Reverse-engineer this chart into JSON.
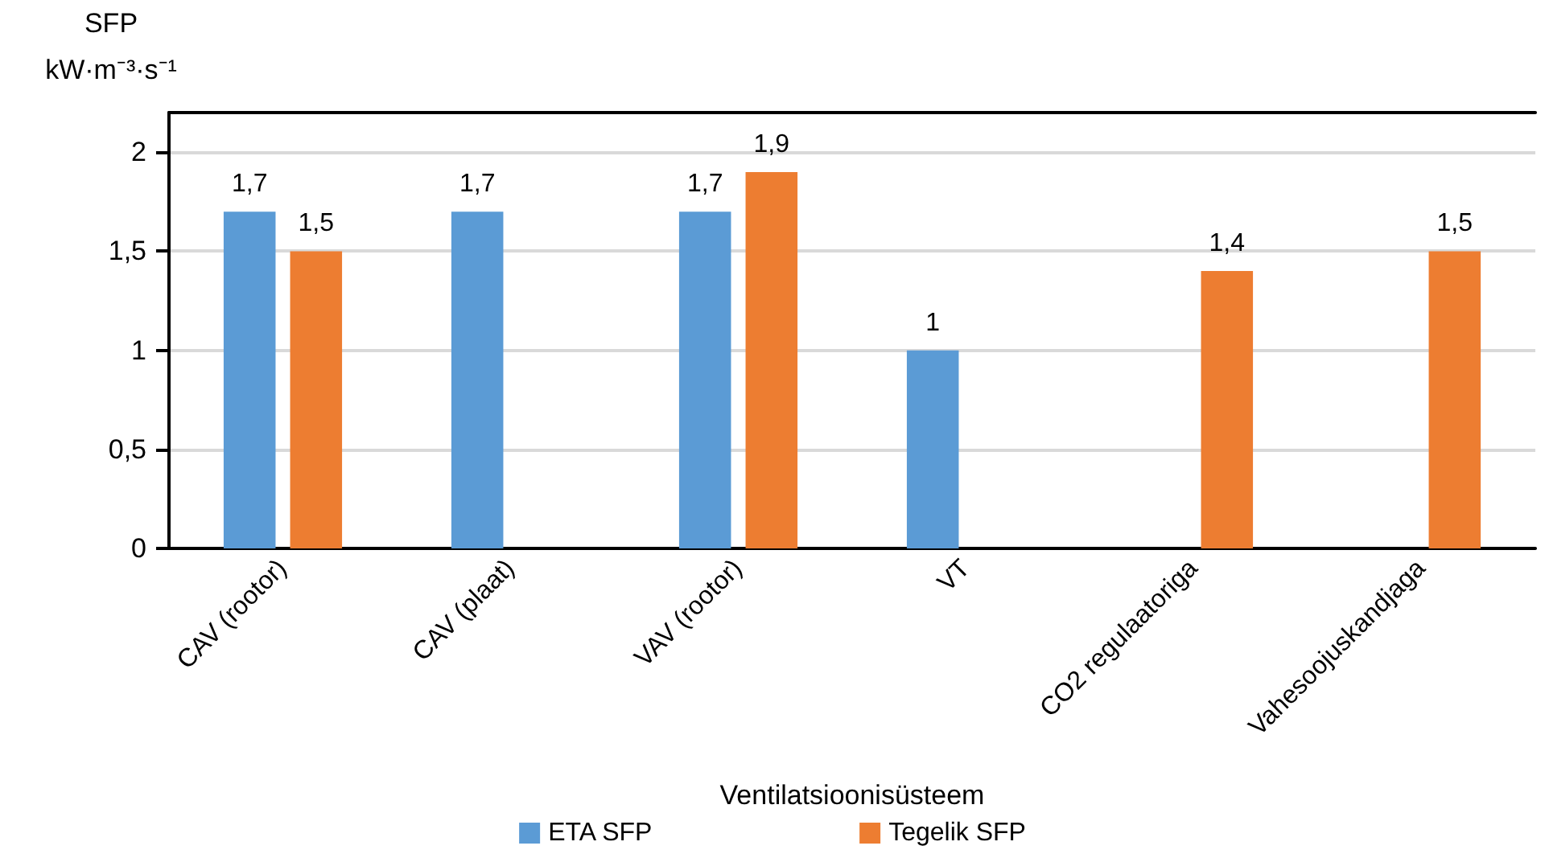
{
  "chart_data": {
    "type": "bar",
    "xlabel": "Ventilatsioonisüsteem",
    "ylabel": "SFP\nkW·m⁻³·s⁻¹",
    "categories": [
      "CAV (rootor)",
      "CAV (plaat)",
      "VAV (rootor)",
      "VT",
      "CO2 regulaatoriga",
      "Vahesoojuskandjaga"
    ],
    "series": [
      {
        "name": "ETA SFP",
        "color": "#5b9bd5",
        "values": [
          1.7,
          1.7,
          1.7,
          1,
          null,
          null
        ],
        "value_labels": [
          "1,7",
          "1,7",
          "1,7",
          "1",
          null,
          null
        ]
      },
      {
        "name": "Tegelik SFP",
        "color": "#ed7d31",
        "values": [
          1.5,
          null,
          1.9,
          null,
          1.4,
          1.5
        ],
        "value_labels": [
          "1,5",
          null,
          "1,9",
          null,
          "1,4",
          "1,5"
        ]
      }
    ],
    "ylim": [
      0,
      2.2
    ],
    "yticks": [
      0,
      {
        "value": 0.5,
        "label": "0,5"
      },
      1,
      {
        "value": 1.5,
        "label": "1,5"
      },
      2
    ],
    "grid": "y",
    "legend": "bottom"
  }
}
